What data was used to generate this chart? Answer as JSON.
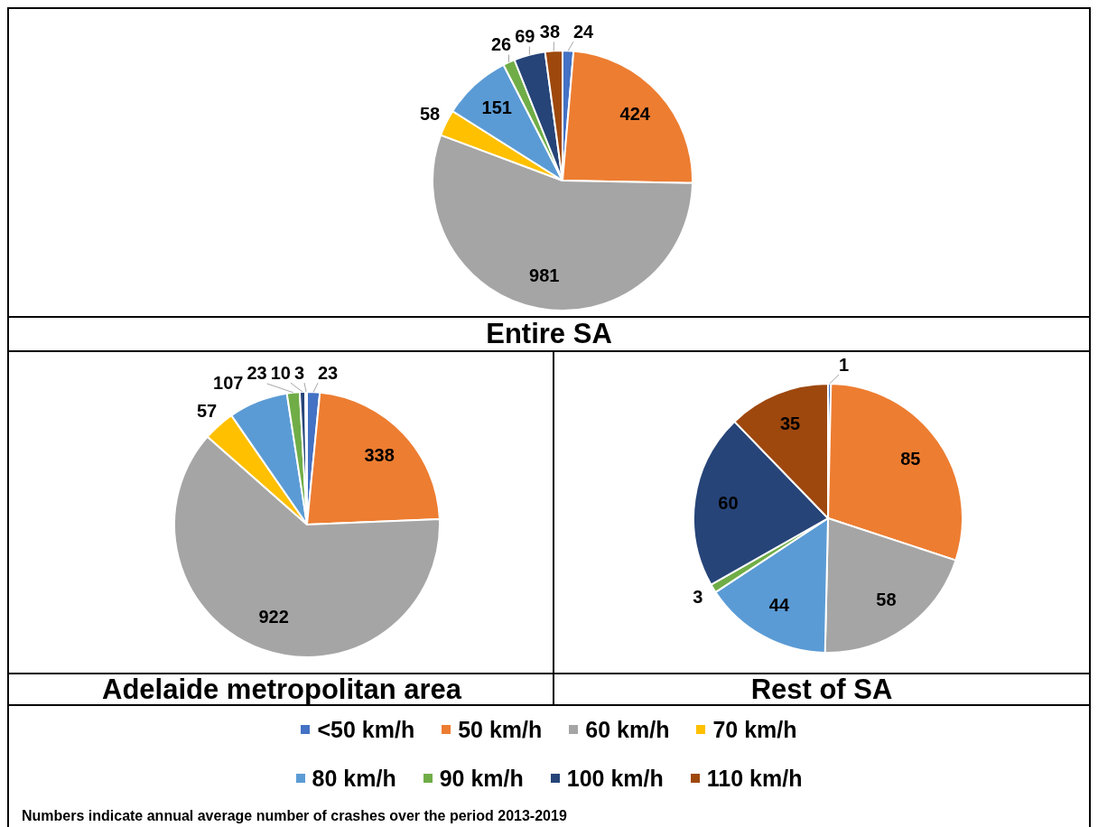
{
  "chart_data": [
    {
      "type": "pie",
      "title": "Entire SA",
      "categories": [
        "<50 km/h",
        "50 km/h",
        "60 km/h",
        "70 km/h",
        "80 km/h",
        "90 km/h",
        "100 km/h",
        "110 km/h"
      ],
      "values": [
        24,
        424,
        981,
        58,
        151,
        26,
        69,
        38
      ],
      "colors": [
        "#4472c4",
        "#ed7d31",
        "#a5a5a5",
        "#ffc000",
        "#5b9bd5",
        "#70ad47",
        "#264478",
        "#9e480e"
      ],
      "data_labels": true,
      "legend": "bottom",
      "annotations": [
        "Numbers indicate annual average number of crashes over the period 2013-2019"
      ]
    },
    {
      "type": "pie",
      "title": "Adelaide metropolitan area",
      "categories": [
        null,
        null,
        null,
        null,
        null,
        null,
        null,
        null
      ],
      "values": [
        23,
        338,
        922,
        57,
        107,
        23,
        10,
        3
      ],
      "colors": [
        "#4472c4",
        "#ed7d31",
        "#a5a5a5",
        "#ffc000",
        "#5b9bd5",
        "#70ad47",
        "#264478",
        "#9e480e"
      ],
      "data_labels": true
    },
    {
      "type": "pie",
      "title": "Rest of SA",
      "categories": [
        null,
        null,
        null,
        null,
        null,
        null,
        null,
        null
      ],
      "values": [
        1,
        85,
        58,
        null,
        44,
        3,
        60,
        35
      ],
      "colors": [
        "#4472c4",
        "#ed7d31",
        "#a5a5a5",
        "#ffc000",
        "#5b9bd5",
        "#70ad47",
        "#264478",
        "#9e480e"
      ],
      "data_labels": true
    }
  ]
}
